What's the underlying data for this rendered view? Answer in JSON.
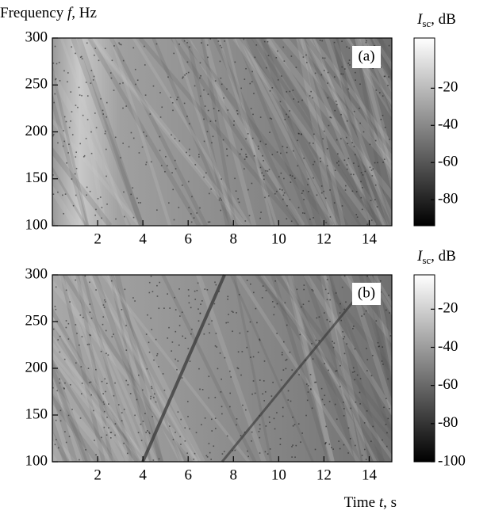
{
  "chart_data": [
    {
      "type": "heatmap",
      "panel_label": "(a)",
      "ylabel": {
        "word": "Frequency ",
        "symbol": "f",
        "unit": ", Hz"
      },
      "xlim": [
        0,
        15
      ],
      "xticks": [
        2,
        4,
        6,
        8,
        10,
        12,
        14
      ],
      "ylim": [
        100,
        300
      ],
      "yticks": [
        100,
        150,
        200,
        250,
        300
      ],
      "colorbar": {
        "symbol": "I",
        "subscript": "sc",
        "unit": ", dB",
        "clim": [
          -94,
          7
        ],
        "ticks": [
          -20,
          -40,
          -60,
          -80
        ]
      }
    },
    {
      "type": "heatmap",
      "panel_label": "(b)",
      "xlabel": {
        "word": "Time ",
        "symbol": "t",
        "unit": ", s"
      },
      "xlim": [
        0,
        15
      ],
      "xticks": [
        2,
        4,
        6,
        8,
        10,
        12,
        14
      ],
      "ylim": [
        100,
        300
      ],
      "yticks": [
        100,
        150,
        200,
        250,
        300
      ],
      "colorbar": {
        "symbol": "I",
        "subscript": "sc",
        "unit": ", dB",
        "clim": [
          -100,
          -2
        ],
        "ticks": [
          -20,
          -40,
          -60,
          -80,
          -100
        ]
      }
    }
  ]
}
